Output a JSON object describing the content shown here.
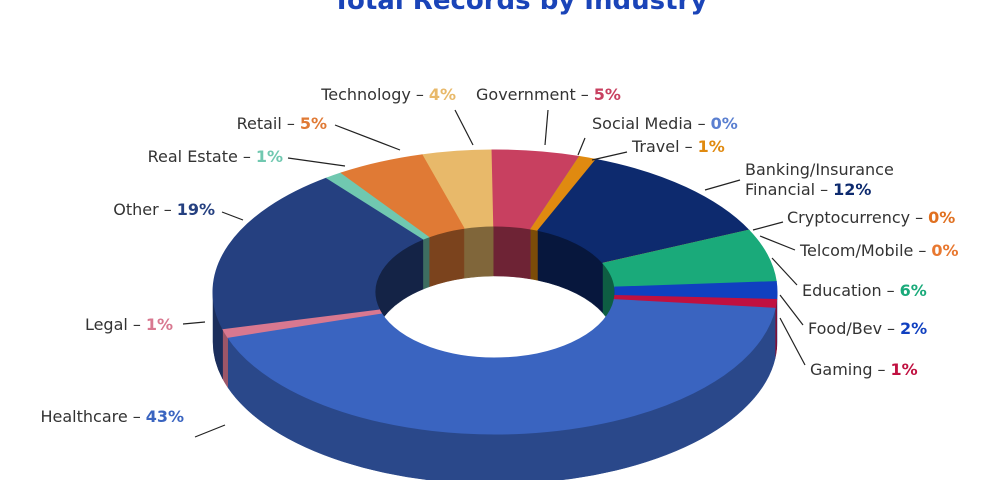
{
  "chart_data": {
    "type": "donut3d",
    "title": "Total Records by Industry",
    "label_separator": "–",
    "categories": [
      "Technology",
      "Government",
      "Social Media",
      "Travel",
      "Banking/Insurance Financial",
      "Cryptocurrency",
      "Telcom/Mobile",
      "Education",
      "Food/Bev",
      "Gaming",
      "Healthcare",
      "Legal",
      "Other",
      "Real Estate",
      "Retail"
    ],
    "values": [
      4,
      5,
      0,
      1,
      12,
      0,
      0,
      6,
      2,
      1,
      43,
      1,
      19,
      1,
      5
    ],
    "value_labels": [
      "4%",
      "5%",
      "0%",
      "1%",
      "12%",
      "0%",
      "0%",
      "6%",
      "2%",
      "1%",
      "43%",
      "1%",
      "19%",
      "1%",
      "5%"
    ],
    "colors": [
      "#e8b96a",
      "#c84060",
      "#5a7fd0",
      "#e08a10",
      "#0d2a6e",
      "#e07020",
      "#e87830",
      "#1aaa7a",
      "#1040c0",
      "#c01040",
      "#3a64c0",
      "#d87890",
      "#254080",
      "#70c8b0",
      "#e07a35"
    ]
  }
}
